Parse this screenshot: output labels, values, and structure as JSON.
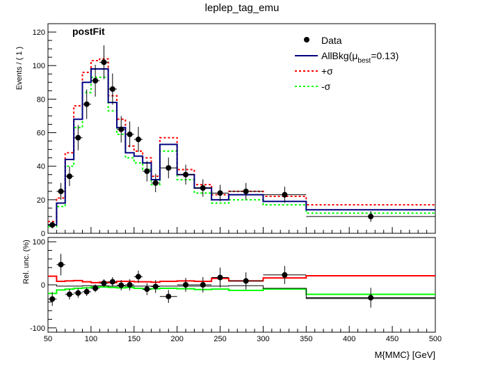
{
  "chart_data": {
    "type": "histogram",
    "title": "leplep_tag_emu",
    "annotation": "postFit",
    "xlabel": "M{MMC} [GeV]",
    "x_ticks": [
      "50",
      "100",
      "150",
      "200",
      "250",
      "300",
      "350",
      "400",
      "450",
      "500"
    ],
    "xlim": [
      50,
      500
    ],
    "bin_edges": [
      50,
      60,
      70,
      80,
      90,
      100,
      110,
      120,
      130,
      140,
      150,
      160,
      170,
      180,
      200,
      220,
      240,
      260,
      300,
      350,
      500
    ],
    "top_panel": {
      "ylabel": "Events / ( 1 )",
      "ylim": [
        0,
        125
      ],
      "y_ticks": [
        "0",
        "20",
        "40",
        "60",
        "80",
        "100",
        "120"
      ],
      "series": [
        {
          "name": "AllBkg",
          "color": "#000080",
          "values": [
            5,
            18,
            44,
            68,
            90,
            98,
            98,
            78,
            63,
            48,
            46,
            42,
            32,
            53,
            35,
            27,
            20,
            23,
            19,
            14
          ]
        },
        {
          "name": "+σ",
          "color": "#ff0000",
          "style": "dashed",
          "values": [
            7,
            21,
            48,
            76,
            96,
            103,
            104,
            82,
            68,
            52,
            49,
            45,
            34,
            57,
            38,
            29,
            23,
            25,
            22,
            17
          ]
        },
        {
          "name": "-σ",
          "color": "#00ff00",
          "style": "dashed",
          "values": [
            4,
            16,
            40,
            63,
            84,
            93,
            93,
            73,
            59,
            45,
            42,
            38,
            29,
            49,
            32,
            24,
            18,
            20,
            17,
            12
          ]
        }
      ],
      "data_points": {
        "name": "Data",
        "x": [
          55,
          65,
          75,
          85,
          95,
          105,
          115,
          125,
          135,
          145,
          155,
          165,
          175,
          190,
          210,
          230,
          250,
          280,
          325,
          425
        ],
        "y": [
          5,
          25,
          34,
          57,
          77,
          91,
          102,
          86,
          62,
          59,
          56,
          37,
          30,
          39,
          35,
          27,
          24,
          25,
          23,
          10
        ],
        "yerr": [
          2.2,
          5,
          5.8,
          7.5,
          8.8,
          9.5,
          10.1,
          9.3,
          7.9,
          7.7,
          7.5,
          6.1,
          5.5,
          6.2,
          5.9,
          5.2,
          4.9,
          5,
          4.8,
          3.2
        ]
      },
      "legend": [
        {
          "label": "Data"
        },
        {
          "label_main": "AllBkg(μ",
          "label_sub": "best",
          "label_tail": "=0.13)"
        },
        {
          "label": "+σ"
        },
        {
          "label": "-σ"
        }
      ],
      "legend_position": "top-right"
    },
    "bottom_panel": {
      "ylabel": "Rel. unc. (%)",
      "ylim": [
        -110,
        110
      ],
      "y_ticks": [
        "-100",
        "0",
        "100"
      ],
      "series": [
        {
          "name": "+σ",
          "color": "#ff0000",
          "values": [
            20,
            8,
            9,
            10,
            7,
            5,
            6,
            5,
            8,
            8,
            7,
            7,
            6,
            8,
            9,
            8,
            15,
            9,
            16,
            21
          ]
        },
        {
          "name": "-σ",
          "color": "#00ff00",
          "values": [
            -20,
            -12,
            -10,
            -8,
            -7,
            -5,
            -5,
            -6,
            -7,
            -6,
            -8,
            -10,
            -9,
            -8,
            -9,
            -11,
            -10,
            -13,
            -10,
            -22
          ]
        },
        {
          "name": "nominal",
          "color": "#000000",
          "values": [
            0,
            -3,
            -3,
            -3,
            -2,
            -2,
            -2,
            -3,
            -3,
            -3,
            -3,
            -3,
            -3,
            -3,
            -3,
            -3,
            -3,
            -2,
            -8,
            -32
          ]
        }
      ],
      "data_points": {
        "x": [
          55,
          65,
          75,
          85,
          95,
          105,
          115,
          125,
          135,
          145,
          155,
          165,
          175,
          190,
          210,
          230,
          250,
          280,
          325,
          425
        ],
        "y": [
          -33,
          47,
          -22,
          -19,
          -16,
          -8,
          4,
          7,
          -1,
          0,
          19,
          -10,
          -4,
          -27,
          0,
          0,
          17,
          9,
          23,
          -30
        ],
        "yerr": [
          16,
          25,
          12,
          11,
          10,
          9,
          9,
          11,
          12,
          13,
          14,
          14,
          15,
          15,
          16,
          18,
          23,
          20,
          21,
          23
        ]
      }
    }
  }
}
